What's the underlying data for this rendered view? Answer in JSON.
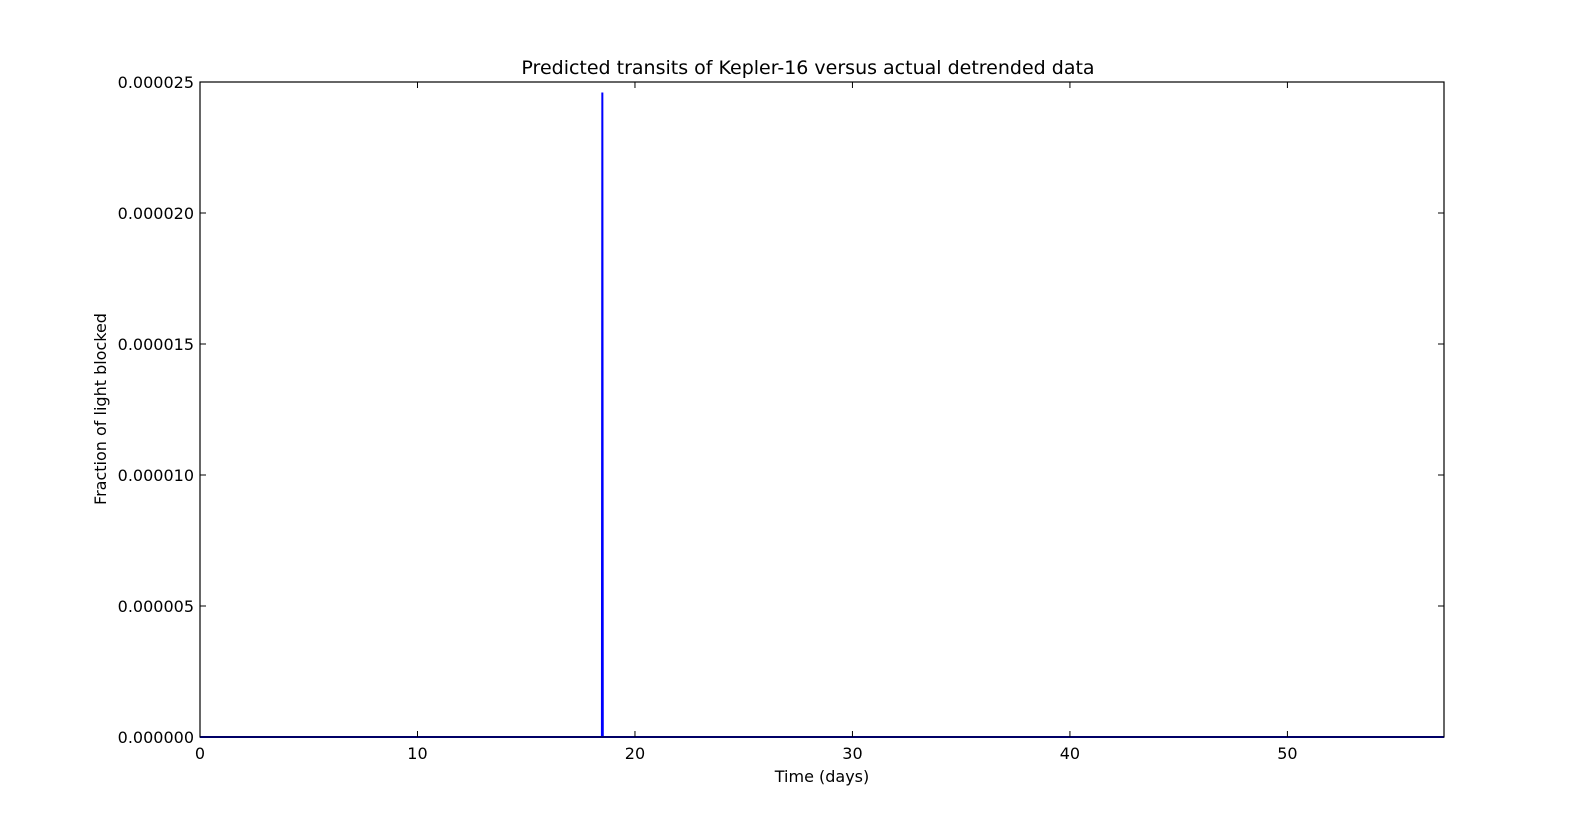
{
  "chart_data": {
    "type": "line",
    "title": "Predicted transits of Kepler-16 versus actual detrended data",
    "xlabel": "Time (days)",
    "ylabel": "Fraction of light blocked",
    "xlim": [
      0,
      57.2
    ],
    "ylim": [
      0,
      2.5e-05
    ],
    "x_ticks": [
      0,
      10,
      20,
      30,
      40,
      50
    ],
    "x_tick_labels": [
      "0",
      "10",
      "20",
      "30",
      "40",
      "50"
    ],
    "y_ticks": [
      0,
      5e-06,
      1e-05,
      1.5e-05,
      2e-05,
      2.5e-05
    ],
    "y_tick_labels": [
      "0.000000",
      "0.000005",
      "0.000010",
      "0.000015",
      "0.000020",
      "0.000025"
    ],
    "grid": false,
    "series": [
      {
        "color": "#0000ff",
        "x": [
          0,
          18.48,
          18.5,
          18.52,
          57.2
        ],
        "y": [
          0,
          0,
          2.46e-05,
          0,
          0
        ]
      }
    ]
  }
}
